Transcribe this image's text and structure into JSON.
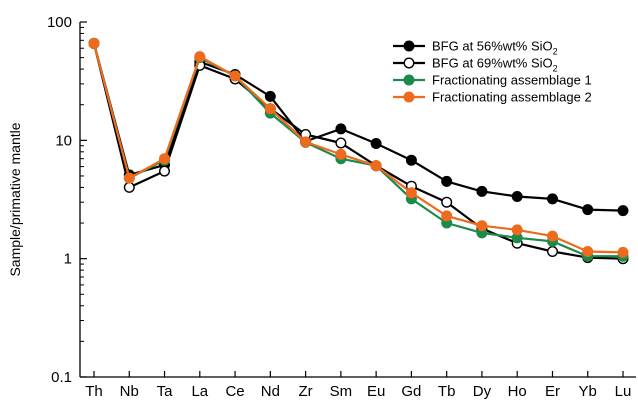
{
  "chart_data": {
    "type": "line",
    "ylabel": "Sample/primative mantle",
    "yscale": "log",
    "ylim": [
      0.1,
      100
    ],
    "y_ticks": [
      "0.1",
      "1",
      "10",
      "100"
    ],
    "categories": [
      "Th",
      "Nb",
      "Ta",
      "La",
      "Ce",
      "Nd",
      "Zr",
      "Sm",
      "Eu",
      "Gd",
      "Tb",
      "Dy",
      "Ho",
      "Er",
      "Yb",
      "Lu"
    ],
    "legend_position": "top-right",
    "series": [
      {
        "name": "BFG at 56%wt% SiO",
        "name_sub": "2",
        "line_color": "#000000",
        "marker_fill": "#000000",
        "marker_stroke": "#000000",
        "values": [
          66,
          5.1,
          6.2,
          46,
          36,
          23.5,
          9.8,
          12.5,
          9.4,
          6.8,
          4.5,
          3.7,
          3.35,
          3.2,
          2.6,
          2.55
        ]
      },
      {
        "name": "BFG at 69%wt% SiO",
        "name_sub": "2",
        "line_color": "#000000",
        "marker_fill": "#ffffff",
        "marker_stroke": "#000000",
        "values": [
          66,
          4.0,
          5.5,
          43,
          33,
          18.5,
          11.2,
          9.5,
          6.1,
          4.1,
          3.0,
          1.8,
          1.35,
          1.15,
          1.02,
          1.0
        ]
      },
      {
        "name": "Fractionating assemblage 1",
        "line_color": "#1b8a4a",
        "marker_fill": "#1b8a4a",
        "marker_stroke": "#1b8a4a",
        "values": [
          66,
          4.8,
          6.8,
          50,
          35,
          17.0,
          9.6,
          7.0,
          6.1,
          3.2,
          2.0,
          1.65,
          1.5,
          1.4,
          1.05,
          1.05
        ]
      },
      {
        "name": "Fractionating assemblage 2",
        "line_color": "#ee6a1d",
        "marker_fill": "#ee6a1d",
        "marker_stroke": "#ee6a1d",
        "values": [
          66,
          4.8,
          7.0,
          51,
          35,
          18.5,
          9.7,
          7.6,
          6.1,
          3.6,
          2.3,
          1.9,
          1.75,
          1.55,
          1.15,
          1.13
        ]
      }
    ]
  }
}
